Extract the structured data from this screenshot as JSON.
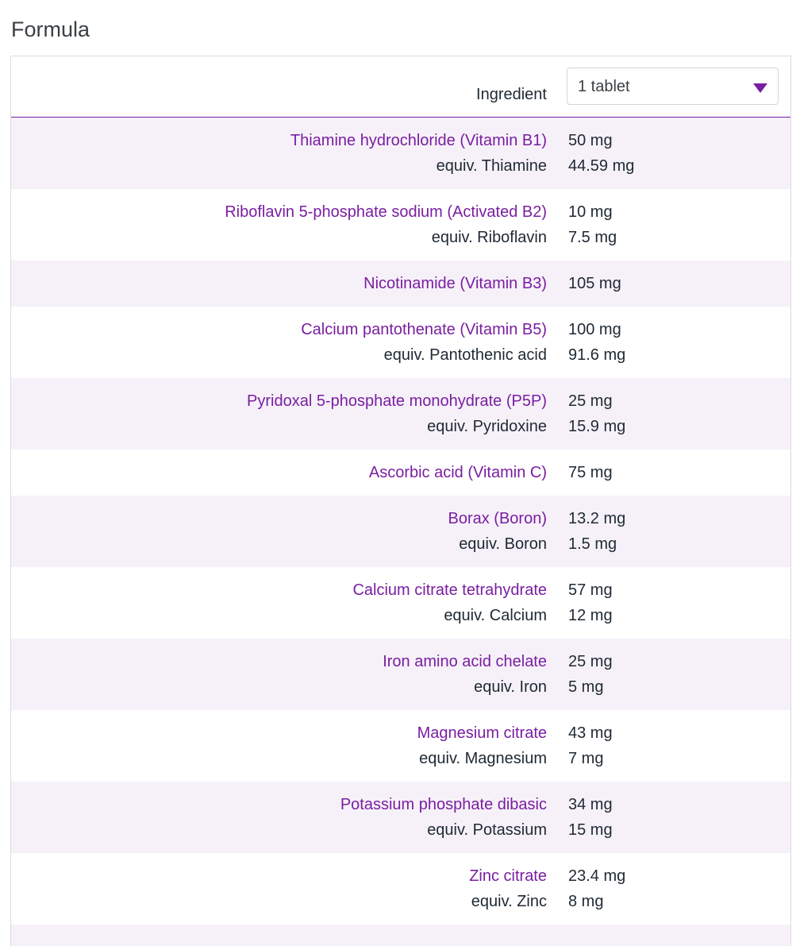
{
  "title": "Formula",
  "table": {
    "header": {
      "ingredient": "Ingredient",
      "serving": "1 tablet"
    },
    "rows": [
      {
        "name": "Thiamine hydrochloride (Vitamin B1)",
        "amount": "50 mg",
        "equiv_name": "equiv. Thiamine",
        "equiv_amount": "44.59 mg"
      },
      {
        "name": "Riboflavin 5-phosphate sodium (Activated B2)",
        "amount": "10 mg",
        "equiv_name": "equiv. Riboflavin",
        "equiv_amount": "7.5 mg"
      },
      {
        "name": "Nicotinamide (Vitamin B3)",
        "amount": "105 mg"
      },
      {
        "name": "Calcium pantothenate (Vitamin B5)",
        "amount": "100 mg",
        "equiv_name": "equiv. Pantothenic acid",
        "equiv_amount": "91.6 mg"
      },
      {
        "name": "Pyridoxal 5-phosphate monohydrate (P5P)",
        "amount": "25 mg",
        "equiv_name": "equiv. Pyridoxine",
        "equiv_amount": "15.9 mg"
      },
      {
        "name": "Ascorbic acid (Vitamin C)",
        "amount": "75 mg"
      },
      {
        "name": "Borax (Boron)",
        "amount": "13.2 mg",
        "equiv_name": "equiv. Boron",
        "equiv_amount": "1.5 mg"
      },
      {
        "name": "Calcium citrate tetrahydrate",
        "amount": "57 mg",
        "equiv_name": "equiv. Calcium",
        "equiv_amount": "12 mg"
      },
      {
        "name": "Iron amino acid chelate",
        "amount": "25 mg",
        "equiv_name": "equiv. Iron",
        "equiv_amount": "5 mg"
      },
      {
        "name": "Magnesium citrate",
        "amount": "43 mg",
        "equiv_name": "equiv. Magnesium",
        "equiv_amount": "7 mg"
      },
      {
        "name": "Potassium phosphate dibasic",
        "amount": "34 mg",
        "equiv_name": "equiv. Potassium",
        "equiv_amount": "15 mg"
      },
      {
        "name": "Zinc citrate",
        "amount": "23.4 mg",
        "equiv_name": "equiv. Zinc",
        "equiv_amount": "8 mg"
      }
    ]
  }
}
